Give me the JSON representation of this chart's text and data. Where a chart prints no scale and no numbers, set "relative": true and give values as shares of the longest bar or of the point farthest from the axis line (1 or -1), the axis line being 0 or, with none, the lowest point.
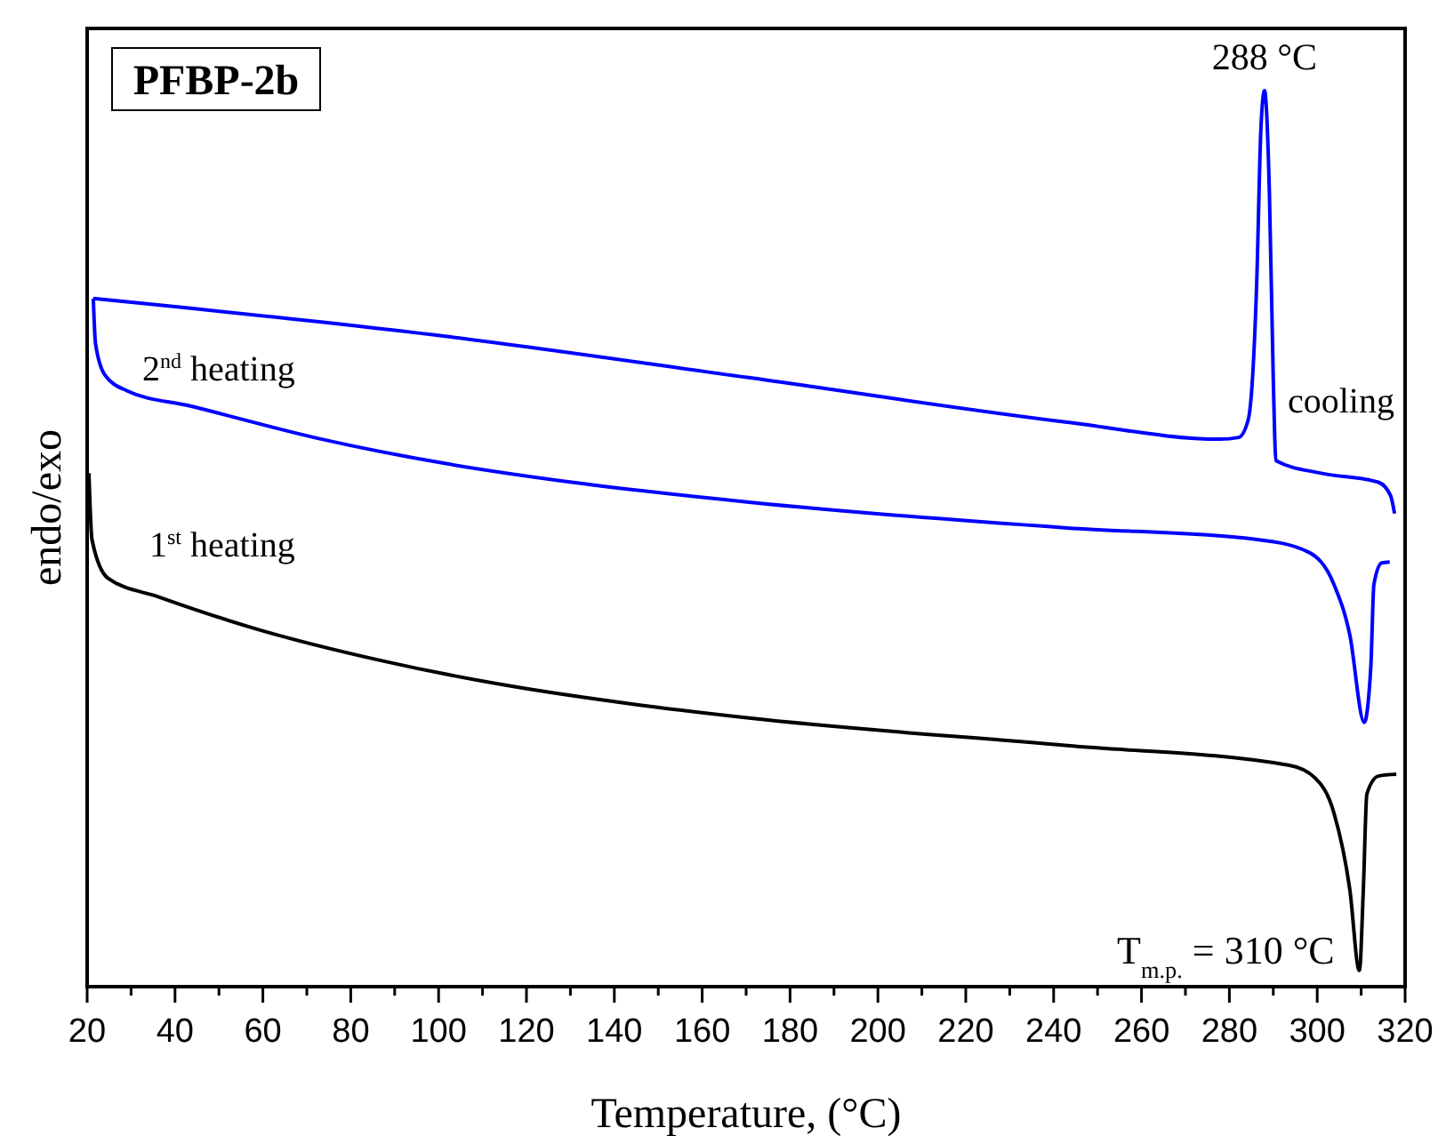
{
  "chart_data": {
    "type": "line",
    "title": "PFBP-2b",
    "xlabel": "Temperature, (°C)",
    "ylabel": "endo/exo",
    "relative": true,
    "xlim": [
      20,
      320
    ],
    "xticks": [
      20,
      {
        "value": 30,
        "label": null
      },
      40,
      {
        "value": 50,
        "label": null
      },
      60,
      {
        "value": 70,
        "label": null
      },
      80,
      {
        "value": 90,
        "label": null
      },
      100,
      {
        "value": 110,
        "label": null
      },
      120,
      {
        "value": 130,
        "label": null
      },
      140,
      {
        "value": 150,
        "label": null
      },
      160,
      {
        "value": 170,
        "label": null
      },
      180,
      {
        "value": 190,
        "label": null
      },
      200,
      {
        "value": 210,
        "label": null
      },
      220,
      {
        "value": 230,
        "label": null
      },
      240,
      {
        "value": 250,
        "label": null
      },
      260,
      {
        "value": 270,
        "label": null
      },
      280,
      {
        "value": 290,
        "label": null
      },
      300,
      {
        "value": 310,
        "label": null
      },
      320
    ],
    "series": [
      {
        "name": "cooling",
        "color": "#0000ff",
        "x": [
          21.4,
          101.4,
          170.2,
          243.1,
          277.9,
          282.1,
          284.3,
          286.2,
          287.2,
          288,
          289.1,
          290,
          290.6,
          300.9,
          313.9,
          316.7,
          317.6
        ],
        "values": [
          0.768,
          0.726,
          0.68,
          0.63,
          0.611,
          0.613,
          0.633,
          0.782,
          0.96,
          1,
          0.889,
          0.677,
          0.587,
          0.573,
          0.563,
          0.548,
          0.528
        ]
      },
      {
        "name": "2$^{nd}$ heating",
        "color": "#0000ff",
        "x": [
          21.4,
          21.9,
          24,
          29.1,
          43.5,
          72.5,
          101.4,
          130.3,
          170.2,
          243.1,
          286.4,
          298,
          303.8,
          307.4,
          310.7,
          312.2,
          312.9,
          314.7,
          316.5
        ],
        "values": [
          0.768,
          0.718,
          0.683,
          0.665,
          0.648,
          0.612,
          0.584,
          0.563,
          0.541,
          0.512,
          0.499,
          0.485,
          0.449,
          0.393,
          0.295,
          0.357,
          0.449,
          0.473,
          0.474
        ]
      },
      {
        "name": "1$^{st}$ heating",
        "color": "#000000",
        "x": [
          20.4,
          21.1,
          24.7,
          36.3,
          58,
          86.9,
          115.8,
          144.7,
          170.2,
          243.1,
          293.7,
          299.5,
          303.8,
          307.4,
          309.6,
          310.5,
          311.3,
          313.9,
          318
        ],
        "values": [
          0.573,
          0.499,
          0.456,
          0.435,
          0.4,
          0.364,
          0.336,
          0.315,
          0.3,
          0.269,
          0.247,
          0.233,
          0.194,
          0.109,
          0.018,
          0.109,
          0.215,
          0.235,
          0.237
        ]
      }
    ],
    "annotations": [
      {
        "text": "288 °C",
        "x": 288,
        "y": 1
      },
      {
        "text": "T$_{m.p.}$ = 310 °C",
        "x": 309.6,
        "y": 0.018
      }
    ]
  }
}
